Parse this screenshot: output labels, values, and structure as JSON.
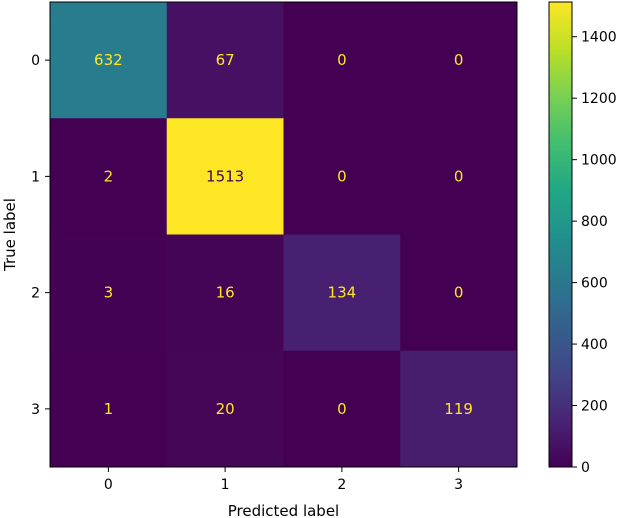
{
  "chart_data": {
    "type": "heatmap",
    "title": "",
    "xlabel": "Predicted label",
    "ylabel": "True label",
    "x_categories": [
      "0",
      "1",
      "2",
      "3"
    ],
    "y_categories": [
      "0",
      "1",
      "2",
      "3"
    ],
    "values": [
      [
        632,
        67,
        0,
        0
      ],
      [
        2,
        1513,
        0,
        0
      ],
      [
        3,
        16,
        134,
        0
      ],
      [
        1,
        20,
        0,
        119
      ]
    ],
    "colormap": "viridis",
    "colorbar": {
      "min": 0,
      "max": 1513,
      "ticks": [
        0,
        200,
        400,
        600,
        800,
        1000,
        1200,
        1400
      ]
    },
    "text_colors": {
      "on_dark": "#fde725",
      "on_light": "#440154"
    },
    "grid": false
  }
}
